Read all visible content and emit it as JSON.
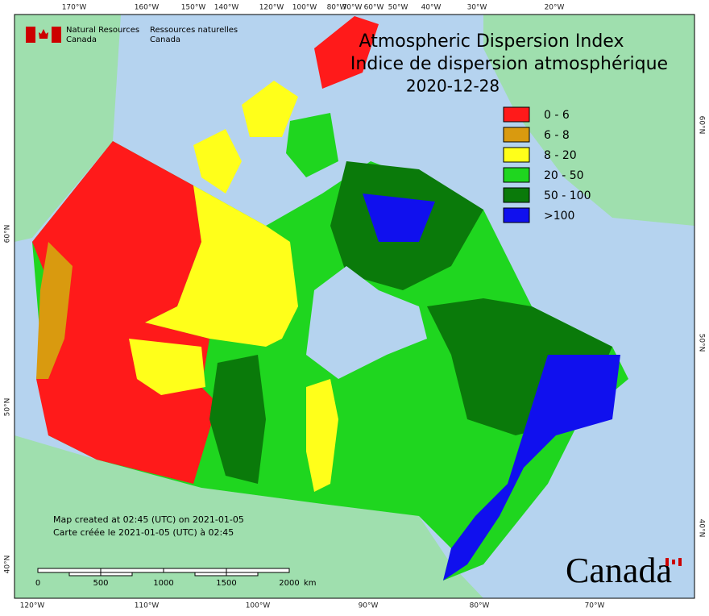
{
  "header": {
    "agency_en": "Natural Resources\nCanada",
    "agency_fr": "Ressources naturelles\nCanada",
    "title": "Atmospheric Dispersion Index",
    "title_fr": "Indice de dispersion atmosphérique",
    "date": "2020-12-28"
  },
  "legend": [
    {
      "label": "0 - 6",
      "color": "#ff1a1a"
    },
    {
      "label": "6 - 8",
      "color": "#d99a0f"
    },
    {
      "label": "8 - 20",
      "color": "#ffff1a"
    },
    {
      "label": "20 - 50",
      "color": "#1fd61f"
    },
    {
      "label": "50 - 100",
      "color": "#0a7a0a"
    },
    {
      "label": ">100",
      "color": "#1010ee"
    }
  ],
  "top_labels": [
    "170°W",
    "160°W",
    "150°W",
    "140°W",
    "120°W",
    "100°W",
    "80°W",
    "70°W",
    "60°W",
    "50°W",
    "40°W",
    "30°W",
    "20°W"
  ],
  "bottom_labels": [
    "120°W",
    "110°W",
    "100°W",
    "90°W",
    "80°W",
    "70°W"
  ],
  "left_labels": [
    "60°N",
    "50°N",
    "40°N"
  ],
  "right_labels": [
    "60°N",
    "50°N",
    "40°N"
  ],
  "footer": {
    "created_en": "Map created at 02:45 (UTC) on 2021-01-05",
    "created_fr": "Carte créée le 2021-01-05 (UTC) à 02:45"
  },
  "scale": {
    "labels": [
      "0",
      "500",
      "1000",
      "1500",
      "2000"
    ],
    "unit": "km"
  },
  "wordmark": "Canada"
}
